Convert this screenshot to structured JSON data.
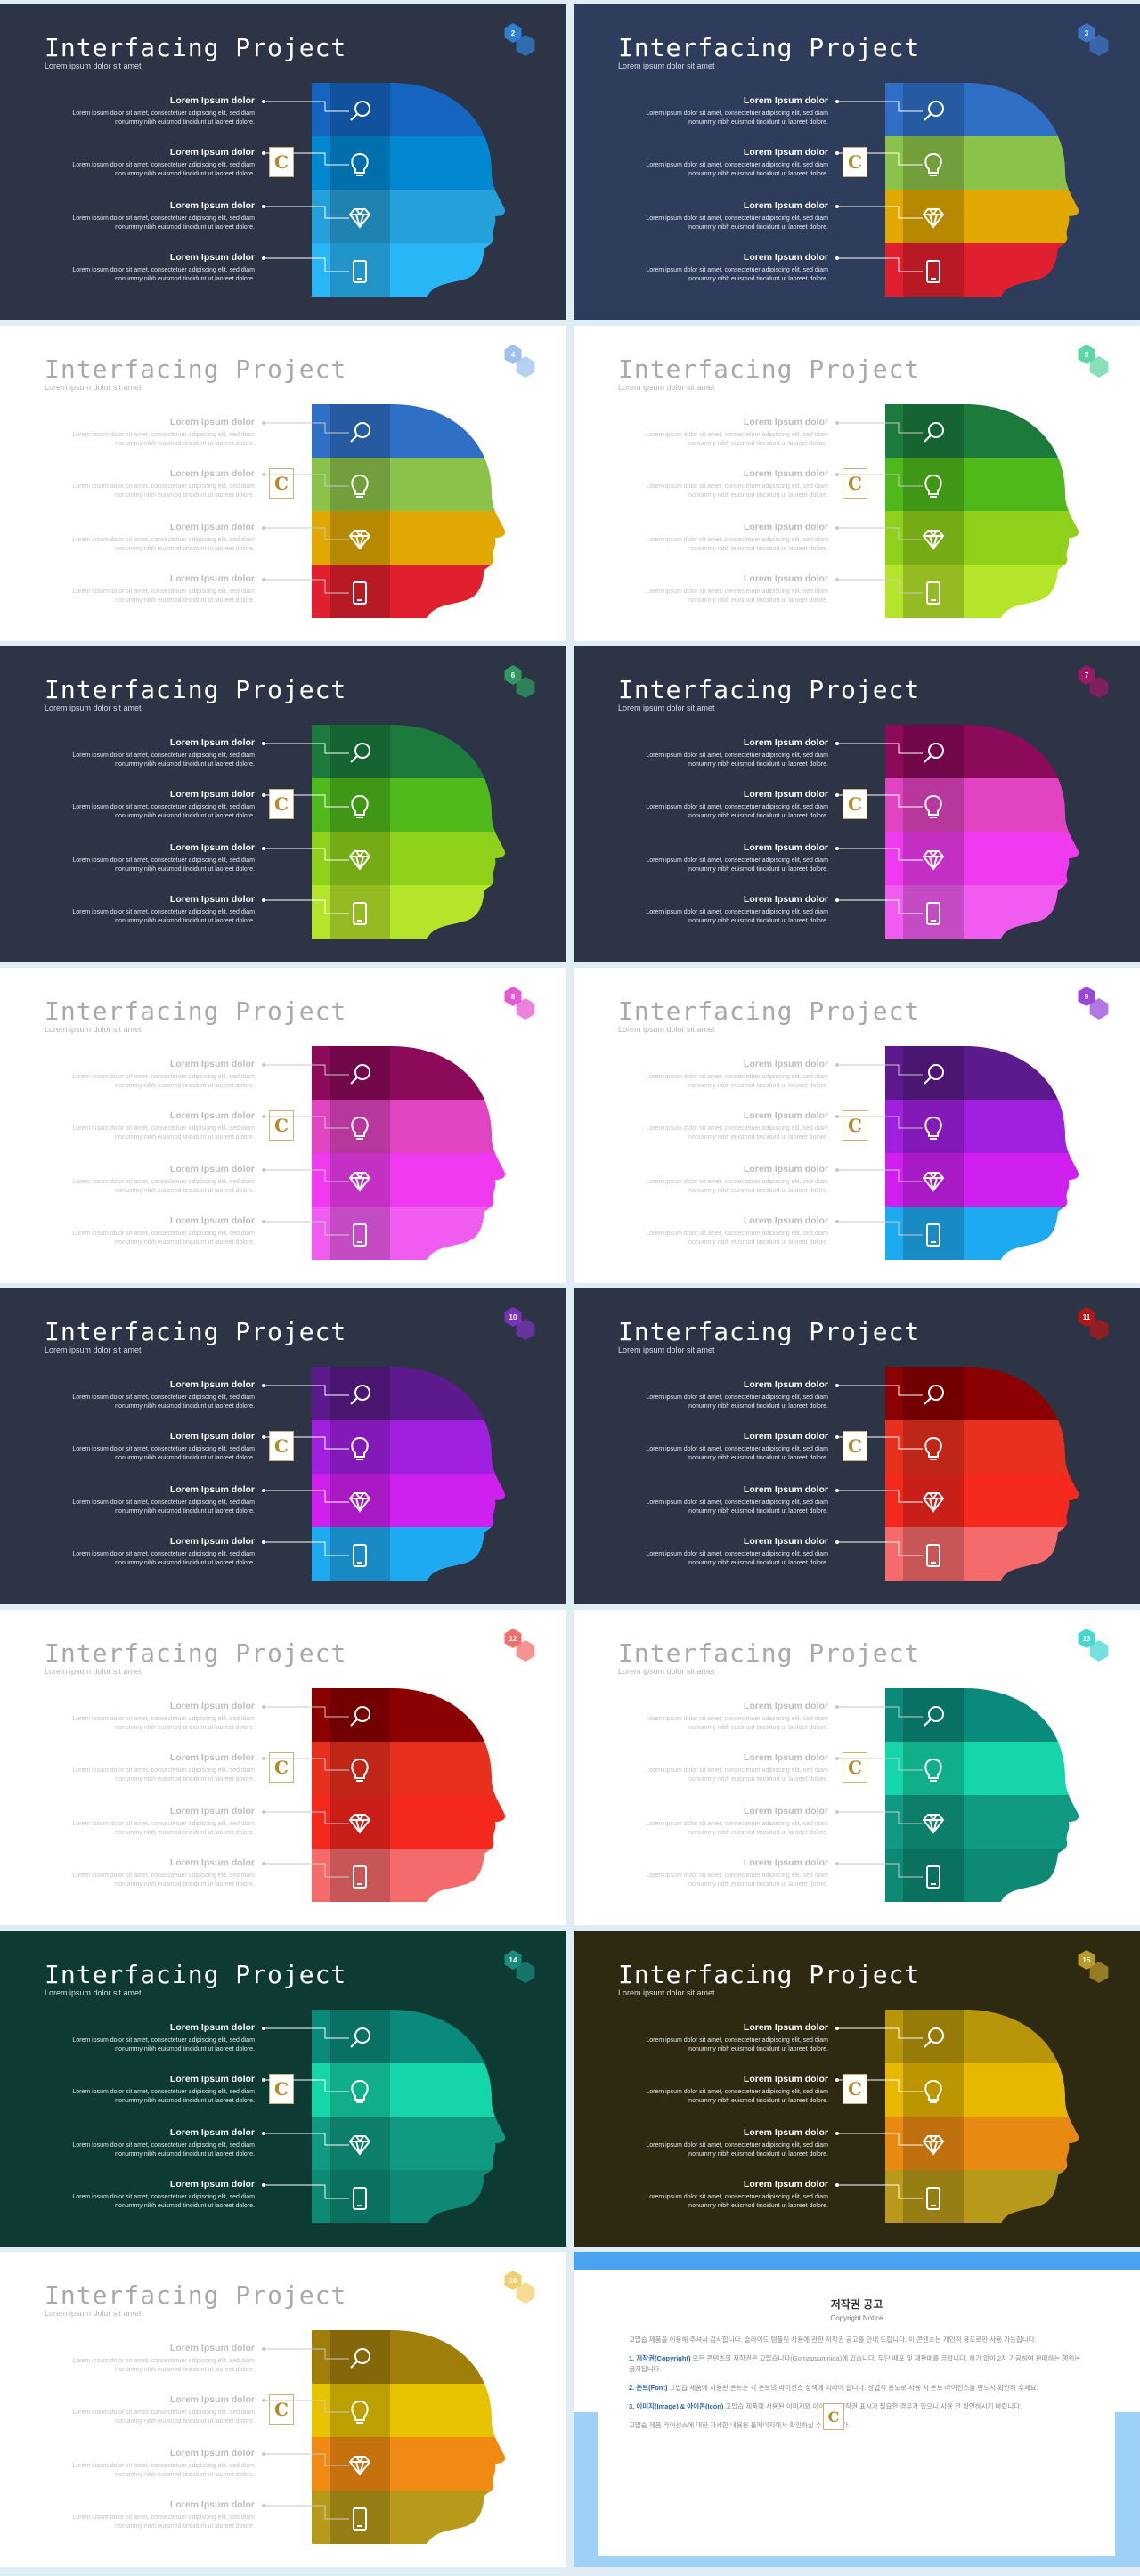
{
  "title": "Interfacing Project",
  "subtitle": "Lorem ipsum dolor sit amet",
  "row_heading": "Lorem Ipsum dolor",
  "row_desc_line1": "Lorem ipsum dolor sit amet, consectetuer adipiscing elit, sed diam",
  "row_desc_line2": "nonummy  nibh euismod tincidunt ut laoreet dolore.",
  "logo_letter": "C",
  "icons": [
    "search-icon",
    "lightbulb-icon",
    "diamond-icon",
    "smartphone-icon"
  ],
  "slides": [
    {
      "num": "2",
      "bg": "#2c3445",
      "theme": "dark",
      "colors": [
        "#1565c0",
        "#0288d1",
        "#26a0da",
        "#29b6f6"
      ],
      "badge": "#2f7fd0"
    },
    {
      "num": "3",
      "bg": "#2f3d5c",
      "theme": "dark",
      "colors": [
        "#2f6fc6",
        "#8bc34a",
        "#e0a800",
        "#e0202e"
      ],
      "badge": "#3d73c4"
    },
    {
      "num": "4",
      "bg": "#ffffff",
      "theme": "light",
      "colors": [
        "#2f6fc6",
        "#8bc34a",
        "#e0a800",
        "#e0202e"
      ],
      "badge": "#9ec1ee"
    },
    {
      "num": "5",
      "bg": "#ffffff",
      "theme": "light",
      "colors": [
        "#1c7a3d",
        "#4fb81a",
        "#8fd11a",
        "#b5e52a"
      ],
      "badge": "#5fd6a6"
    },
    {
      "num": "6",
      "bg": "#2c3445",
      "theme": "dark",
      "colors": [
        "#1c7a3d",
        "#4fb81a",
        "#8fd11a",
        "#b5e52a"
      ],
      "badge": "#2e9a62"
    },
    {
      "num": "7",
      "bg": "#2c3445",
      "theme": "dark",
      "colors": [
        "#8b0a5a",
        "#e044c0",
        "#f03af0",
        "#f05cf0"
      ],
      "badge": "#9a1a66"
    },
    {
      "num": "8",
      "bg": "#ffffff",
      "theme": "light",
      "colors": [
        "#8b0a5a",
        "#e044c0",
        "#f03af0",
        "#f05cf0"
      ],
      "badge": "#e45ad0"
    },
    {
      "num": "9",
      "bg": "#ffffff",
      "theme": "light",
      "colors": [
        "#5c1a8c",
        "#a020e0",
        "#d020f0",
        "#1eaaf0"
      ],
      "badge": "#9a48d8"
    },
    {
      "num": "10",
      "bg": "#2c3445",
      "theme": "dark",
      "colors": [
        "#5c1a8c",
        "#a020e0",
        "#d020f0",
        "#1eaaf0"
      ],
      "badge": "#7a34b8"
    },
    {
      "num": "11",
      "bg": "#2c3445",
      "theme": "dark",
      "colors": [
        "#8b0000",
        "#e8301e",
        "#f5281e",
        "#f56a6a"
      ],
      "badge": "#b01818"
    },
    {
      "num": "12",
      "bg": "#ffffff",
      "theme": "light",
      "colors": [
        "#8b0000",
        "#e8301e",
        "#f5281e",
        "#f56a6a"
      ],
      "badge": "#f07070"
    },
    {
      "num": "13",
      "bg": "#ffffff",
      "theme": "light",
      "colors": [
        "#0a8a7a",
        "#14d6a8",
        "#109a82",
        "#0e8a74"
      ],
      "badge": "#4ad6d0"
    },
    {
      "num": "14",
      "bg": "#0d3b34",
      "theme": "dark",
      "colors": [
        "#0a8a7a",
        "#14d6a8",
        "#109a82",
        "#0e8a74"
      ],
      "badge": "#1a8a7a"
    },
    {
      "num": "15",
      "bg": "#2e2a12",
      "theme": "dark",
      "colors": [
        "#b8960a",
        "#e6b800",
        "#e88a12",
        "#b89a1a"
      ],
      "badge": "#b89a2a"
    },
    {
      "num": "16",
      "bg": "#ffffff",
      "theme": "light",
      "colors": [
        "#a07e0a",
        "#e6c200",
        "#f08a12",
        "#b89a1a"
      ],
      "badge": "#f0d070"
    }
  ],
  "notice": {
    "title": "저작권 공고",
    "subtitle": "Copyright Notice",
    "p0": "고맙습 제품을 이용해 주셔서 감사합니다. 슬라이드 템플릿 사용에 관한 저작권 공고를 안내 드립니다. 이 콘텐츠는 개인적 용도로만 사용 가능합니다.",
    "p1_head": "1. 저작권(Copyright)",
    "p1": " 모든 콘텐츠의 저작권은 고맙습니다(Gomapsumnida)에 있습니다. 무단 배포 및 재판매를 금합니다. 허가 없이 2차 가공하여 판매하는 행위는 금지됩니다.",
    "p2_head": "2. 폰트(Font)",
    "p2": " 고맙습 제품에 사용된 폰트는 각 폰트의 라이선스 정책에 따라야 합니다. 상업적 용도로 사용 시 폰트 라이선스를 반드시 확인해 주세요.",
    "p3_head": "3. 이미지(Image) & 아이콘(Icon)",
    "p3": " 고맙습 제품에 사용된 이미지와 아이콘은 저작권 표시가 필요한 경우가 있으니 사용 전 확인하시기 바랍니다.",
    "p4": "고맙습 제품 라이선스에 대한 자세한 내용은 홈페이지에서 확인하실 수 있습니다."
  }
}
